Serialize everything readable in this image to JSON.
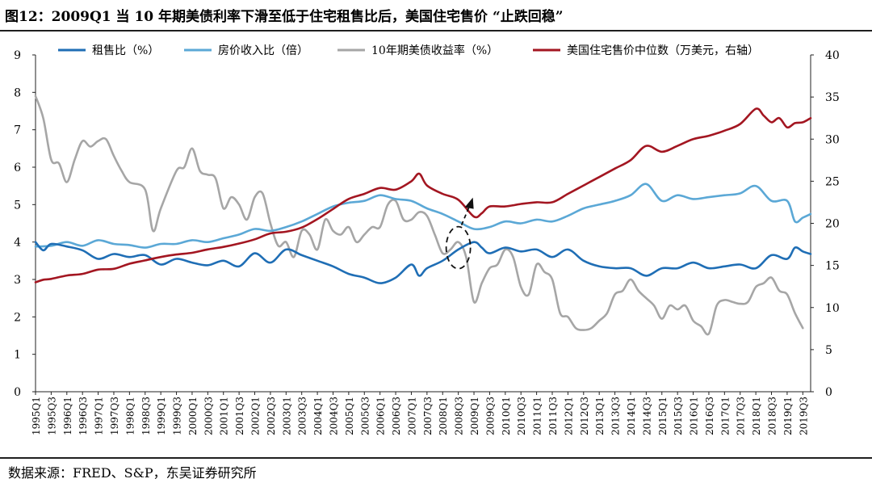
{
  "title": "图12：2009Q1 当 10 年期美债利率下滑至低于住宅租售比后，美国住宅售价 “止跌回稳”",
  "source": "数据来源：FRED、S&P，东吴证券研究所",
  "chart_data": {
    "type": "line",
    "x_tick_labels": [
      "1995Q1",
      "1995Q3",
      "1996Q1",
      "1996Q3",
      "1997Q1",
      "1997Q3",
      "1998Q1",
      "1998Q3",
      "1999Q1",
      "1999Q3",
      "2000Q1",
      "2000Q3",
      "2001Q1",
      "2001Q3",
      "2002Q1",
      "2002Q3",
      "2003Q1",
      "2003Q3",
      "2004Q1",
      "2004Q3",
      "2005Q1",
      "2005Q3",
      "2006Q1",
      "2006Q3",
      "2007Q1",
      "2007Q3",
      "2008Q1",
      "2008Q3",
      "2009Q1",
      "2009Q3",
      "2010Q1",
      "2010Q3",
      "2011Q1",
      "2011Q3",
      "2012Q1",
      "2012Q3",
      "2013Q1",
      "2013Q3",
      "2014Q1",
      "2014Q3",
      "2015Q1",
      "2015Q3",
      "2016Q1",
      "2016Q3",
      "2017Q1",
      "2017Q3",
      "2018Q1",
      "2018Q3",
      "2019Q1",
      "2019Q3"
    ],
    "y_left": {
      "min": 0,
      "max": 9,
      "ticks": [
        0,
        1,
        2,
        3,
        4,
        5,
        6,
        7,
        8,
        9
      ]
    },
    "y_right": {
      "min": 0,
      "max": 40,
      "ticks": [
        0,
        5,
        10,
        15,
        20,
        25,
        30,
        35,
        40
      ]
    },
    "legend_position": "top",
    "series": [
      {
        "name": "租售比（%）",
        "axis": "left",
        "color": "#1f6eb5",
        "anchors": [
          [
            1995.0,
            4.0
          ],
          [
            1995.25,
            3.78
          ],
          [
            1995.5,
            3.95
          ],
          [
            1996.0,
            3.88
          ],
          [
            1996.5,
            3.78
          ],
          [
            1997.0,
            3.55
          ],
          [
            1997.5,
            3.68
          ],
          [
            1998.0,
            3.6
          ],
          [
            1998.5,
            3.65
          ],
          [
            1999.0,
            3.4
          ],
          [
            1999.5,
            3.55
          ],
          [
            2000.0,
            3.45
          ],
          [
            2000.5,
            3.38
          ],
          [
            2001.0,
            3.5
          ],
          [
            2001.5,
            3.35
          ],
          [
            2002.0,
            3.7
          ],
          [
            2002.5,
            3.45
          ],
          [
            2003.0,
            3.8
          ],
          [
            2003.5,
            3.65
          ],
          [
            2004.0,
            3.5
          ],
          [
            2004.5,
            3.35
          ],
          [
            2005.0,
            3.15
          ],
          [
            2005.5,
            3.05
          ],
          [
            2006.0,
            2.9
          ],
          [
            2006.5,
            3.05
          ],
          [
            2007.0,
            3.4
          ],
          [
            2007.25,
            3.1
          ],
          [
            2007.5,
            3.3
          ],
          [
            2008.0,
            3.5
          ],
          [
            2008.5,
            3.8
          ],
          [
            2009.0,
            4.0
          ],
          [
            2009.25,
            3.85
          ],
          [
            2009.5,
            3.7
          ],
          [
            2010.0,
            3.85
          ],
          [
            2010.5,
            3.75
          ],
          [
            2011.0,
            3.8
          ],
          [
            2011.5,
            3.6
          ],
          [
            2012.0,
            3.8
          ],
          [
            2012.5,
            3.5
          ],
          [
            2013.0,
            3.35
          ],
          [
            2013.5,
            3.3
          ],
          [
            2014.0,
            3.3
          ],
          [
            2014.5,
            3.1
          ],
          [
            2015.0,
            3.3
          ],
          [
            2015.5,
            3.3
          ],
          [
            2016.0,
            3.45
          ],
          [
            2016.5,
            3.3
          ],
          [
            2017.0,
            3.35
          ],
          [
            2017.5,
            3.4
          ],
          [
            2018.0,
            3.3
          ],
          [
            2018.5,
            3.65
          ],
          [
            2019.0,
            3.55
          ],
          [
            2019.25,
            3.85
          ],
          [
            2019.5,
            3.75
          ],
          [
            2019.75,
            3.68
          ]
        ]
      },
      {
        "name": "房价收入比（倍）",
        "axis": "left",
        "color": "#5ba8d6",
        "anchors": [
          [
            1995.0,
            3.88
          ],
          [
            1995.5,
            3.9
          ],
          [
            1996.0,
            4.0
          ],
          [
            1996.5,
            3.9
          ],
          [
            1997.0,
            4.05
          ],
          [
            1997.5,
            3.95
          ],
          [
            1998.0,
            3.92
          ],
          [
            1998.5,
            3.85
          ],
          [
            1999.0,
            3.95
          ],
          [
            1999.5,
            3.95
          ],
          [
            2000.0,
            4.05
          ],
          [
            2000.5,
            4.0
          ],
          [
            2001.0,
            4.1
          ],
          [
            2001.5,
            4.2
          ],
          [
            2002.0,
            4.35
          ],
          [
            2002.5,
            4.3
          ],
          [
            2003.0,
            4.4
          ],
          [
            2003.5,
            4.55
          ],
          [
            2004.0,
            4.75
          ],
          [
            2004.5,
            4.95
          ],
          [
            2005.0,
            5.05
          ],
          [
            2005.5,
            5.1
          ],
          [
            2006.0,
            5.25
          ],
          [
            2006.5,
            5.15
          ],
          [
            2007.0,
            5.1
          ],
          [
            2007.5,
            4.9
          ],
          [
            2008.0,
            4.75
          ],
          [
            2008.5,
            4.55
          ],
          [
            2009.0,
            4.35
          ],
          [
            2009.5,
            4.4
          ],
          [
            2010.0,
            4.55
          ],
          [
            2010.5,
            4.5
          ],
          [
            2011.0,
            4.6
          ],
          [
            2011.5,
            4.55
          ],
          [
            2012.0,
            4.7
          ],
          [
            2012.5,
            4.9
          ],
          [
            2013.0,
            5.0
          ],
          [
            2013.5,
            5.1
          ],
          [
            2014.0,
            5.25
          ],
          [
            2014.5,
            5.55
          ],
          [
            2015.0,
            5.1
          ],
          [
            2015.5,
            5.25
          ],
          [
            2016.0,
            5.15
          ],
          [
            2016.5,
            5.2
          ],
          [
            2017.0,
            5.25
          ],
          [
            2017.5,
            5.3
          ],
          [
            2018.0,
            5.5
          ],
          [
            2018.5,
            5.1
          ],
          [
            2019.0,
            5.1
          ],
          [
            2019.25,
            4.55
          ],
          [
            2019.5,
            4.65
          ],
          [
            2019.75,
            4.75
          ]
        ]
      },
      {
        "name": "10年期美债收益率（%）",
        "axis": "left",
        "color": "#a6a6a6",
        "anchors": [
          [
            1995.0,
            7.9
          ],
          [
            1995.25,
            7.3
          ],
          [
            1995.5,
            6.2
          ],
          [
            1995.75,
            6.1
          ],
          [
            1996.0,
            5.6
          ],
          [
            1996.25,
            6.2
          ],
          [
            1996.5,
            6.7
          ],
          [
            1996.75,
            6.55
          ],
          [
            1997.0,
            6.7
          ],
          [
            1997.25,
            6.75
          ],
          [
            1997.5,
            6.3
          ],
          [
            1997.75,
            5.9
          ],
          [
            1998.0,
            5.6
          ],
          [
            1998.5,
            5.4
          ],
          [
            1998.75,
            4.3
          ],
          [
            1999.0,
            4.9
          ],
          [
            1999.5,
            5.9
          ],
          [
            1999.75,
            6.0
          ],
          [
            2000.0,
            6.5
          ],
          [
            2000.25,
            5.9
          ],
          [
            2000.5,
            5.8
          ],
          [
            2000.75,
            5.7
          ],
          [
            2001.0,
            4.9
          ],
          [
            2001.25,
            5.2
          ],
          [
            2001.5,
            5.0
          ],
          [
            2001.75,
            4.6
          ],
          [
            2002.0,
            5.2
          ],
          [
            2002.25,
            5.3
          ],
          [
            2002.5,
            4.5
          ],
          [
            2002.75,
            3.9
          ],
          [
            2003.0,
            4.0
          ],
          [
            2003.25,
            3.6
          ],
          [
            2003.5,
            4.3
          ],
          [
            2003.75,
            4.2
          ],
          [
            2004.0,
            3.8
          ],
          [
            2004.25,
            4.6
          ],
          [
            2004.5,
            4.3
          ],
          [
            2004.75,
            4.2
          ],
          [
            2005.0,
            4.4
          ],
          [
            2005.25,
            4.0
          ],
          [
            2005.5,
            4.2
          ],
          [
            2005.75,
            4.4
          ],
          [
            2006.0,
            4.4
          ],
          [
            2006.25,
            5.0
          ],
          [
            2006.5,
            5.1
          ],
          [
            2006.75,
            4.6
          ],
          [
            2007.0,
            4.6
          ],
          [
            2007.25,
            4.8
          ],
          [
            2007.5,
            4.7
          ],
          [
            2007.75,
            4.2
          ],
          [
            2008.0,
            3.7
          ],
          [
            2008.25,
            3.8
          ],
          [
            2008.5,
            4.0
          ],
          [
            2008.75,
            3.6
          ],
          [
            2009.0,
            2.4
          ],
          [
            2009.25,
            2.9
          ],
          [
            2009.5,
            3.3
          ],
          [
            2009.75,
            3.4
          ],
          [
            2010.0,
            3.8
          ],
          [
            2010.25,
            3.6
          ],
          [
            2010.5,
            2.8
          ],
          [
            2010.75,
            2.6
          ],
          [
            2011.0,
            3.4
          ],
          [
            2011.25,
            3.2
          ],
          [
            2011.5,
            3.0
          ],
          [
            2011.75,
            2.1
          ],
          [
            2012.0,
            2.0
          ],
          [
            2012.25,
            1.7
          ],
          [
            2012.5,
            1.65
          ],
          [
            2012.75,
            1.7
          ],
          [
            2013.0,
            1.9
          ],
          [
            2013.25,
            2.1
          ],
          [
            2013.5,
            2.6
          ],
          [
            2013.75,
            2.7
          ],
          [
            2014.0,
            3.0
          ],
          [
            2014.25,
            2.7
          ],
          [
            2014.5,
            2.5
          ],
          [
            2014.75,
            2.3
          ],
          [
            2015.0,
            1.95
          ],
          [
            2015.25,
            2.3
          ],
          [
            2015.5,
            2.2
          ],
          [
            2015.75,
            2.3
          ],
          [
            2016.0,
            1.9
          ],
          [
            2016.25,
            1.75
          ],
          [
            2016.5,
            1.55
          ],
          [
            2016.75,
            2.3
          ],
          [
            2017.0,
            2.45
          ],
          [
            2017.25,
            2.4
          ],
          [
            2017.5,
            2.35
          ],
          [
            2017.75,
            2.4
          ],
          [
            2018.0,
            2.8
          ],
          [
            2018.25,
            2.9
          ],
          [
            2018.5,
            3.05
          ],
          [
            2018.75,
            2.7
          ],
          [
            2019.0,
            2.6
          ],
          [
            2019.25,
            2.1
          ],
          [
            2019.5,
            1.7
          ]
        ]
      },
      {
        "name": "美国住宅售价中位数（万美元，右轴）",
        "axis": "right",
        "color": "#a31621",
        "anchors": [
          [
            1995.0,
            13.0
          ],
          [
            1995.25,
            13.3
          ],
          [
            1995.5,
            13.4
          ],
          [
            1996.0,
            13.8
          ],
          [
            1996.5,
            14.0
          ],
          [
            1997.0,
            14.5
          ],
          [
            1997.5,
            14.6
          ],
          [
            1998.0,
            15.2
          ],
          [
            1998.5,
            15.6
          ],
          [
            1999.0,
            16.0
          ],
          [
            1999.5,
            16.3
          ],
          [
            2000.0,
            16.5
          ],
          [
            2000.5,
            16.9
          ],
          [
            2001.0,
            17.2
          ],
          [
            2001.5,
            17.6
          ],
          [
            2002.0,
            18.1
          ],
          [
            2002.5,
            18.8
          ],
          [
            2003.0,
            19.0
          ],
          [
            2003.5,
            19.5
          ],
          [
            2004.0,
            20.5
          ],
          [
            2004.5,
            21.7
          ],
          [
            2005.0,
            22.9
          ],
          [
            2005.5,
            23.5
          ],
          [
            2006.0,
            24.2
          ],
          [
            2006.5,
            24.0
          ],
          [
            2007.0,
            25.0
          ],
          [
            2007.25,
            25.9
          ],
          [
            2007.5,
            24.5
          ],
          [
            2008.0,
            23.5
          ],
          [
            2008.5,
            22.8
          ],
          [
            2009.0,
            20.8
          ],
          [
            2009.25,
            21.2
          ],
          [
            2009.5,
            22.0
          ],
          [
            2010.0,
            22.0
          ],
          [
            2010.5,
            22.3
          ],
          [
            2011.0,
            22.5
          ],
          [
            2011.5,
            22.5
          ],
          [
            2012.0,
            23.5
          ],
          [
            2012.5,
            24.5
          ],
          [
            2013.0,
            25.5
          ],
          [
            2013.5,
            26.5
          ],
          [
            2014.0,
            27.5
          ],
          [
            2014.5,
            29.2
          ],
          [
            2015.0,
            28.5
          ],
          [
            2015.5,
            29.2
          ],
          [
            2016.0,
            30.0
          ],
          [
            2016.5,
            30.4
          ],
          [
            2017.0,
            31.0
          ],
          [
            2017.5,
            31.8
          ],
          [
            2018.0,
            33.6
          ],
          [
            2018.25,
            32.8
          ],
          [
            2018.5,
            32.0
          ],
          [
            2018.75,
            32.5
          ],
          [
            2019.0,
            31.4
          ],
          [
            2019.25,
            31.9
          ],
          [
            2019.5,
            32.0
          ],
          [
            2019.75,
            32.5
          ]
        ]
      }
    ],
    "annotation": {
      "type": "dashed-ellipse-with-arrow",
      "x": 2008.5,
      "y_left": 3.85
    }
  }
}
